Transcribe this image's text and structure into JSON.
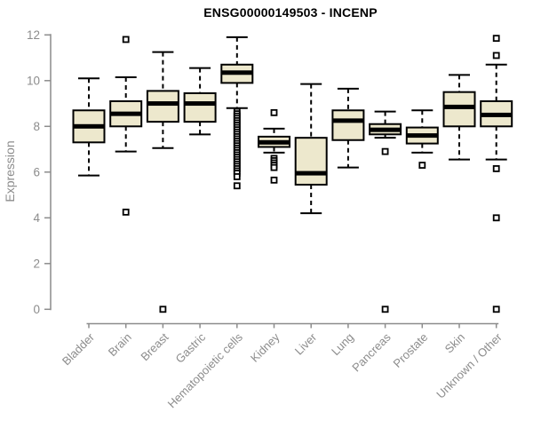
{
  "chart_data": {
    "type": "boxplot",
    "title": "ENSG00000149503 - INCENP",
    "ylabel": "Expression",
    "xlabel": "",
    "ylim": [
      0,
      12
    ],
    "yticks": [
      0,
      2,
      4,
      6,
      8,
      10,
      12
    ],
    "grid": "off",
    "legend": "none",
    "categories": [
      "Bladder",
      "Brain",
      "Breast",
      "Gastric",
      "Hematopoietic cells",
      "Kidney",
      "Liver",
      "Lung",
      "Pancreas",
      "Prostate",
      "Skin",
      "Unknown / Other"
    ],
    "series": [
      {
        "name": "Bladder",
        "whislo": 5.85,
        "q1": 7.3,
        "med": 8.0,
        "q3": 8.7,
        "whishi": 10.1,
        "outliers": []
      },
      {
        "name": "Brain",
        "whislo": 6.9,
        "q1": 8.0,
        "med": 8.55,
        "q3": 9.1,
        "whishi": 10.15,
        "outliers": [
          11.8,
          4.25
        ]
      },
      {
        "name": "Breast",
        "whislo": 7.05,
        "q1": 8.2,
        "med": 9.0,
        "q3": 9.55,
        "whishi": 11.25,
        "outliers": [
          0
        ]
      },
      {
        "name": "Gastric",
        "whislo": 7.65,
        "q1": 8.2,
        "med": 9.0,
        "q3": 9.45,
        "whishi": 10.55,
        "outliers": []
      },
      {
        "name": "Hematopoietic cells",
        "whislo": 8.8,
        "q1": 9.9,
        "med": 10.35,
        "q3": 10.7,
        "whishi": 11.9,
        "outliers": [
          8.65,
          8.55,
          8.45,
          8.35,
          8.25,
          8.15,
          8.05,
          7.95,
          7.85,
          7.75,
          7.65,
          7.55,
          7.45,
          7.35,
          7.25,
          7.15,
          7.05,
          6.95,
          6.85,
          6.75,
          6.65,
          6.55,
          6.45,
          6.35,
          6.25,
          6.15,
          6.05,
          5.95,
          5.8,
          5.4
        ]
      },
      {
        "name": "Kidney",
        "whislo": 6.85,
        "q1": 7.1,
        "med": 7.3,
        "q3": 7.55,
        "whishi": 7.9,
        "outliers": [
          8.6,
          6.6,
          6.5,
          6.4,
          6.3,
          6.2,
          5.65
        ]
      },
      {
        "name": "Liver",
        "whislo": 4.2,
        "q1": 5.45,
        "med": 5.95,
        "q3": 7.5,
        "whishi": 9.85,
        "outliers": []
      },
      {
        "name": "Lung",
        "whislo": 6.2,
        "q1": 7.4,
        "med": 8.25,
        "q3": 8.7,
        "whishi": 9.65,
        "outliers": []
      },
      {
        "name": "Pancreas",
        "whislo": 7.5,
        "q1": 7.65,
        "med": 7.85,
        "q3": 8.1,
        "whishi": 8.65,
        "outliers": [
          6.9,
          0
        ]
      },
      {
        "name": "Prostate",
        "whislo": 6.85,
        "q1": 7.25,
        "med": 7.6,
        "q3": 7.95,
        "whishi": 8.7,
        "outliers": [
          6.3
        ]
      },
      {
        "name": "Skin",
        "whislo": 6.55,
        "q1": 8.0,
        "med": 8.85,
        "q3": 9.5,
        "whishi": 10.25,
        "outliers": []
      },
      {
        "name": "Unknown / Other",
        "whislo": 6.55,
        "q1": 8.0,
        "med": 8.5,
        "q3": 9.1,
        "whishi": 10.7,
        "outliers": [
          11.85,
          11.1,
          6.15,
          4.0,
          0
        ]
      }
    ],
    "colors": {
      "box_fill": "#EDE8CD",
      "box_stroke": "#000000",
      "median": "#000000",
      "whisker": "#000000",
      "outlier_stroke": "#000000",
      "outlier_fill": "#FFFFFF",
      "axis": "#8C8C8C",
      "tick_label": "#8C8C8C",
      "title": "#000000",
      "background": "#FFFFFF"
    }
  }
}
